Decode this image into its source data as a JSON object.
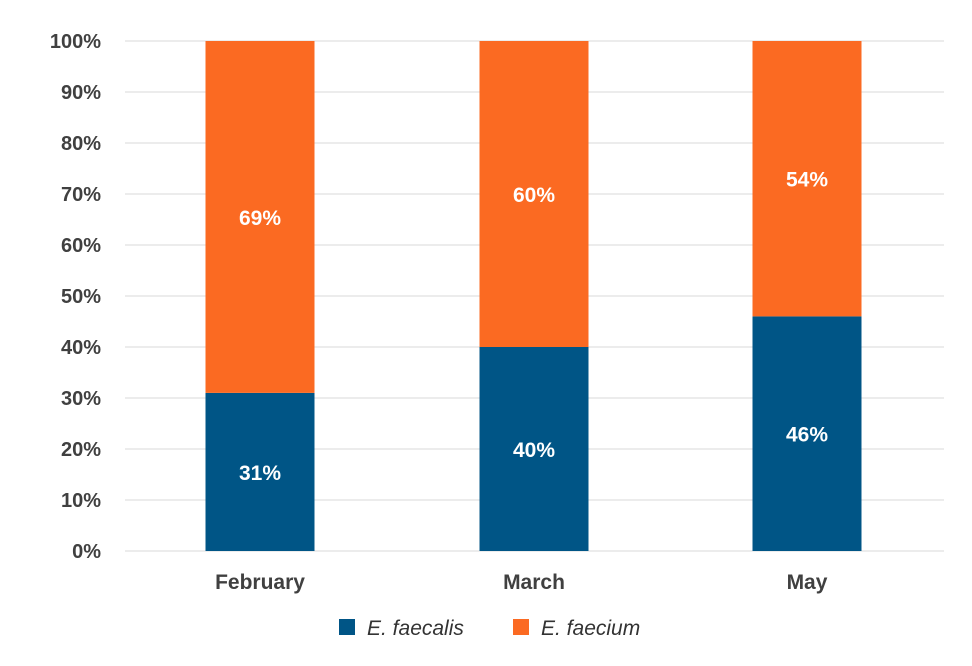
{
  "chart_data": {
    "type": "bar",
    "stacked": true,
    "categories": [
      "February",
      "March",
      "May"
    ],
    "series": [
      {
        "name": "E. faecalis",
        "values": [
          31,
          40,
          46
        ],
        "labels": [
          "31%",
          "40%",
          "46%"
        ],
        "color": "#005586"
      },
      {
        "name": "E. faecium",
        "values": [
          69,
          60,
          54
        ],
        "labels": [
          "69%",
          "60%",
          "54%"
        ],
        "color": "#FB6A22"
      }
    ],
    "title": "",
    "xlabel": "",
    "ylabel": "",
    "ylim": [
      0,
      100
    ],
    "yticks": [
      0,
      10,
      20,
      30,
      40,
      50,
      60,
      70,
      80,
      90,
      100
    ],
    "ytick_labels": [
      "0%",
      "10%",
      "20%",
      "30%",
      "40%",
      "50%",
      "60%",
      "70%",
      "80%",
      "90%",
      "100%"
    ],
    "grid": true,
    "grid_color": "#D9D9D9",
    "legend_position": "bottom"
  }
}
